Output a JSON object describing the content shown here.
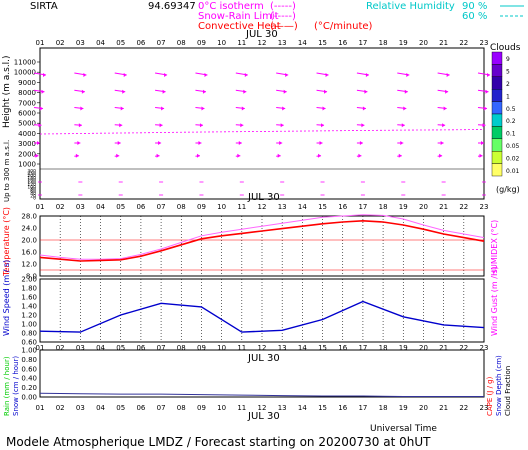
{
  "header": {
    "station": "SIRTA",
    "station_code": "94.69347",
    "legend": [
      {
        "label": "0°C isotherm",
        "sample": "(-----)",
        "color": "#ff00ff"
      },
      {
        "label": "Snow-Rain Limit",
        "sample": "(-----)",
        "color": "#ff00ff"
      },
      {
        "label": "Convective Heat",
        "sample": "(——)",
        "color": "#ff0000"
      }
    ],
    "convective_unit": "(°C/minute)",
    "humidity_label": "Relative Humidity",
    "humidity_values": [
      "90 %",
      "60 %"
    ],
    "humidity_color": "#00c8c8"
  },
  "footer": {
    "time_axis_label": "Universal Time",
    "credit": "Modele Atmospherique LMDZ / Forecast starting on 20200730 at 0hUT"
  },
  "date_label": "JUL 30",
  "hour_ticks": [
    "01",
    "02",
    "03",
    "04",
    "05",
    "06",
    "07",
    "08",
    "09",
    "10",
    "11",
    "12",
    "13",
    "14",
    "15",
    "16",
    "17",
    "18",
    "19",
    "20",
    "21",
    "22",
    "23"
  ],
  "chart_data": [
    {
      "id": "wind-profile",
      "type": "scatter",
      "ylabel": "Height  (m a.s.l.)",
      "ylabel_low": "Up to 300 m a.s.l.",
      "y_ticks_upper": [
        "11000",
        "10000",
        "9000",
        "8000",
        "7000",
        "6000",
        "5000",
        "4000",
        "3000",
        "2000",
        "1000"
      ],
      "y_ticks_lower": [
        "300",
        "250",
        "200",
        "180",
        "160",
        "140",
        "120",
        "100",
        "80",
        "60",
        "40",
        "20",
        "0"
      ],
      "freezing_level_m": [
        3600,
        3620,
        3650,
        3680,
        3700,
        3720,
        3750,
        3780,
        3800,
        3820,
        3840,
        3860,
        3880,
        3900,
        3920,
        3940,
        3960,
        3980,
        4000,
        4010,
        4020,
        4040,
        4060
      ],
      "clouds_colorbar": {
        "title": "Clouds",
        "unit": "(g/kg)",
        "ticks": [
          "9",
          "5",
          "2",
          "1",
          "0.5",
          "0.2",
          "0.1",
          "0.05",
          "0.02",
          "0.01"
        ],
        "colors": [
          "#9900ff",
          "#6600cc",
          "#3300aa",
          "#2222cc",
          "#3366ff",
          "#00cccc",
          "#00cc66",
          "#66ff66",
          "#ccff33",
          "#ffff66"
        ]
      }
    },
    {
      "id": "temperature",
      "type": "line",
      "ylabel": "Temperature (°C)",
      "ylabel_right": "HUMIDEX (°C)",
      "y_ticks": [
        "28.0",
        "24.0",
        "20.0",
        "16.0",
        "12.0",
        "8.0"
      ],
      "ylim": [
        8,
        28
      ],
      "x": [
        1,
        2,
        3,
        4,
        5,
        6,
        7,
        8,
        9,
        10,
        11,
        12,
        13,
        14,
        15,
        16,
        17,
        18,
        19,
        20,
        21,
        22,
        23
      ],
      "series": [
        {
          "values": [
            14.2,
            13.6,
            13.0,
            13.2,
            13.4,
            14.6,
            16.4,
            18.4,
            20.4,
            21.4,
            22.2,
            23.0,
            23.8,
            24.6,
            25.4,
            26.0,
            26.4,
            26.0,
            25.0,
            23.6,
            22.0,
            20.8,
            19.6
          ],
          "color": "#ff0000"
        },
        {
          "values": [
            15.0,
            14.2,
            13.6,
            13.6,
            13.8,
            15.2,
            17.0,
            19.2,
            21.4,
            22.6,
            23.6,
            24.6,
            25.6,
            26.6,
            27.6,
            28.0,
            28.4,
            28.2,
            27.0,
            25.0,
            23.2,
            22.0,
            20.8
          ],
          "color": "#ff66ff"
        }
      ],
      "reference_lines": [
        20.0,
        10.0
      ]
    },
    {
      "id": "wind-speed",
      "type": "line",
      "ylabel": "Wind Speed (m / s)",
      "ylabel_right": "Wind Gust (m / s)",
      "y_ticks": [
        "2.00",
        "1.80",
        "1.60",
        "1.40",
        "1.20",
        "1.00",
        "0.80",
        "0.60"
      ],
      "ylim": [
        0.6,
        2.0
      ],
      "x": [
        1,
        3,
        5,
        7,
        9,
        11,
        13,
        15,
        17,
        19,
        21,
        23
      ],
      "series": [
        {
          "values": [
            0.84,
            0.82,
            1.2,
            1.46,
            1.38,
            0.82,
            0.86,
            1.1,
            1.5,
            1.16,
            0.98,
            0.92
          ],
          "color": "#0000cc"
        }
      ]
    },
    {
      "id": "precipitation",
      "type": "area",
      "ylabel": "Rain (mm / hour)",
      "ylabel2": "Snow (cm / hour)",
      "ylabel_right": "CAPE (J / g)",
      "ylabel_right2": "Snow Depth (cm)",
      "ylabel_right3": "Cloud Fraction",
      "y_ticks": [
        "1.00",
        "0.80",
        "0.60",
        "0.40",
        "0.20",
        "0.00"
      ],
      "ylim": [
        0,
        1
      ],
      "x": [
        1,
        3,
        5,
        7,
        9,
        11,
        13,
        15,
        17,
        19,
        21,
        23
      ],
      "series": [
        {
          "values": [
            0.08,
            0.07,
            0.06,
            0.06,
            0.05,
            0.04,
            0.03,
            0.02,
            0.02,
            0.01,
            0.01,
            0.01
          ],
          "color": "#333399"
        }
      ]
    }
  ],
  "colors": {
    "frame": "#000000",
    "magenta": "#ff00ff",
    "red": "#ff0000",
    "blue": "#0000cc",
    "cyan": "#00c8c8",
    "green": "#00cc00"
  }
}
